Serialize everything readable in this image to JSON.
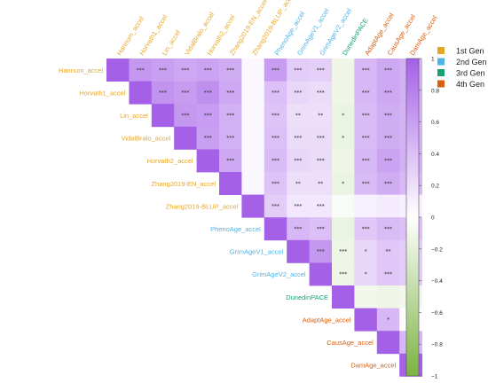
{
  "chart_data": {
    "type": "heatmap",
    "variables": [
      {
        "label": "Hannum_accel",
        "gen": "1st Gen"
      },
      {
        "label": "Horvath1_accel",
        "gen": "1st Gen"
      },
      {
        "label": "Lin_accel",
        "gen": "1st Gen"
      },
      {
        "label": "VidalBralo_accel",
        "gen": "1st Gen"
      },
      {
        "label": "Horvath2_accel",
        "gen": "1st Gen"
      },
      {
        "label": "Zhang2019-EN_accel",
        "gen": "1st Gen"
      },
      {
        "label": "Zhang2019-BLUP_accel",
        "gen": "1st Gen"
      },
      {
        "label": "PhenoAge_accel",
        "gen": "2nd Gen"
      },
      {
        "label": "GrimAgeV1_accel",
        "gen": "2nd Gen"
      },
      {
        "label": "GrimAgeV2_accel",
        "gen": "2nd Gen"
      },
      {
        "label": "DunedinPACE",
        "gen": "3rd Gen"
      },
      {
        "label": "AdaptAge_accel",
        "gen": "4th Gen"
      },
      {
        "label": "CausAge_accel",
        "gen": "4th Gen"
      },
      {
        "label": "DamAge_accel",
        "gen": "4th Gen"
      }
    ],
    "matrix": [
      [
        1.0,
        0.65,
        0.6,
        0.55,
        0.58,
        0.52,
        0.05,
        0.62,
        0.32,
        0.3,
        -0.12,
        0.45,
        0.55,
        0.5
      ],
      [
        0.65,
        1.0,
        0.68,
        0.62,
        0.7,
        0.55,
        0.05,
        0.4,
        0.25,
        0.22,
        -0.12,
        0.45,
        0.55,
        0.5
      ],
      [
        0.6,
        0.68,
        1.0,
        0.65,
        0.62,
        0.5,
        0.05,
        0.38,
        0.2,
        0.2,
        -0.15,
        0.42,
        0.52,
        0.48
      ],
      [
        0.55,
        0.62,
        0.65,
        1.0,
        0.6,
        0.5,
        0.05,
        0.4,
        0.22,
        0.22,
        -0.15,
        0.42,
        0.52,
        0.48
      ],
      [
        0.58,
        0.7,
        0.62,
        0.6,
        1.0,
        0.55,
        0.05,
        0.42,
        0.25,
        0.22,
        -0.12,
        0.45,
        0.58,
        0.5
      ],
      [
        0.52,
        0.55,
        0.5,
        0.5,
        0.55,
        1.0,
        0.05,
        0.38,
        0.2,
        0.2,
        -0.15,
        0.42,
        0.52,
        0.45
      ],
      [
        0.05,
        0.05,
        0.05,
        0.05,
        0.05,
        0.05,
        1.0,
        0.32,
        0.15,
        0.15,
        -0.05,
        0.1,
        0.12,
        0.1
      ],
      [
        0.62,
        0.4,
        0.38,
        0.4,
        0.42,
        0.38,
        0.32,
        1.0,
        0.45,
        0.4,
        -0.15,
        0.35,
        0.42,
        0.4
      ],
      [
        0.32,
        0.25,
        0.2,
        0.22,
        0.25,
        0.2,
        0.15,
        0.45,
        1.0,
        0.65,
        -0.12,
        0.25,
        0.35,
        0.32
      ],
      [
        0.3,
        0.22,
        0.2,
        0.22,
        0.22,
        0.2,
        0.15,
        0.4,
        0.65,
        1.0,
        -0.12,
        0.25,
        0.35,
        0.32
      ],
      [
        -0.12,
        -0.12,
        -0.15,
        -0.15,
        -0.12,
        -0.15,
        -0.05,
        -0.15,
        -0.12,
        -0.12,
        1.0,
        -0.1,
        -0.12,
        -0.1
      ],
      [
        0.45,
        0.45,
        0.42,
        0.42,
        0.45,
        0.42,
        0.1,
        0.35,
        0.25,
        0.25,
        -0.1,
        1.0,
        0.45,
        0.02
      ],
      [
        0.55,
        0.55,
        0.52,
        0.52,
        0.58,
        0.52,
        0.12,
        0.42,
        0.35,
        0.35,
        -0.12,
        0.45,
        1.0,
        0.45
      ],
      [
        0.5,
        0.5,
        0.48,
        0.48,
        0.5,
        0.45,
        0.1,
        0.4,
        0.32,
        0.32,
        -0.1,
        0.02,
        0.45,
        1.0
      ]
    ],
    "significance": [
      [
        "",
        "***",
        "***",
        "***",
        "***",
        "***",
        "",
        "***",
        "***",
        "***",
        "",
        "***",
        "***",
        "***"
      ],
      [
        "",
        "",
        "***",
        "***",
        "***",
        "***",
        "",
        "***",
        "***",
        "***",
        "",
        "***",
        "***",
        "***"
      ],
      [
        "",
        "",
        "",
        "***",
        "***",
        "***",
        "",
        "***",
        "**",
        "**",
        "*",
        "***",
        "***",
        "***"
      ],
      [
        "",
        "",
        "",
        "",
        "***",
        "***",
        "",
        "***",
        "***",
        "***",
        "*",
        "***",
        "***",
        "***"
      ],
      [
        "",
        "",
        "",
        "",
        "",
        "***",
        "",
        "***",
        "***",
        "***",
        "",
        "***",
        "***",
        "***"
      ],
      [
        "",
        "",
        "",
        "",
        "",
        "",
        "",
        "***",
        "**",
        "**",
        "*",
        "***",
        "***",
        "***"
      ],
      [
        "",
        "",
        "",
        "",
        "",
        "",
        "",
        "***",
        "***",
        "***",
        "",
        "",
        "",
        ""
      ],
      [
        "",
        "",
        "",
        "",
        "",
        "",
        "",
        "",
        "***",
        "***",
        "",
        "***",
        "***",
        "***"
      ],
      [
        "",
        "",
        "",
        "",
        "",
        "",
        "",
        "",
        "",
        "***",
        "***",
        "*",
        "**",
        "***"
      ],
      [
        "",
        "",
        "",
        "",
        "",
        "",
        "",
        "",
        "",
        "",
        "***",
        "*",
        "***",
        "***"
      ],
      [
        "",
        "",
        "",
        "",
        "",
        "",
        "",
        "",
        "",
        "",
        "",
        "",
        "",
        ""
      ],
      [
        "",
        "",
        "",
        "",
        "",
        "",
        "",
        "",
        "",
        "",
        "",
        "",
        "*",
        ""
      ],
      [
        "",
        "",
        "",
        "",
        "",
        "",
        "",
        "",
        "",
        "",
        "",
        "",
        "",
        "***"
      ],
      [
        "",
        "",
        "",
        "",
        "",
        "",
        "",
        "",
        "",
        "",
        "",
        "",
        "",
        ""
      ]
    ],
    "colorbar": {
      "range": [
        -1,
        1
      ],
      "ticks": [
        "1",
        "0.8",
        "0.6",
        "0.4",
        "0.2",
        "0",
        "−0.2",
        "−0.4",
        "−0.6",
        "−0.8",
        "−1"
      ],
      "color_min": "#7cb342",
      "color_mid": "#ffffff",
      "color_max": "#a560e8"
    },
    "legend": {
      "placement": "top-right",
      "entries": [
        {
          "name": "1st Gen",
          "color": "#e8a628"
        },
        {
          "name": "2nd Gen",
          "color": "#4fb3e6"
        },
        {
          "name": "3rd Gen",
          "color": "#17a275"
        },
        {
          "name": "4th Gen",
          "color": "#d95f0e"
        }
      ]
    }
  }
}
